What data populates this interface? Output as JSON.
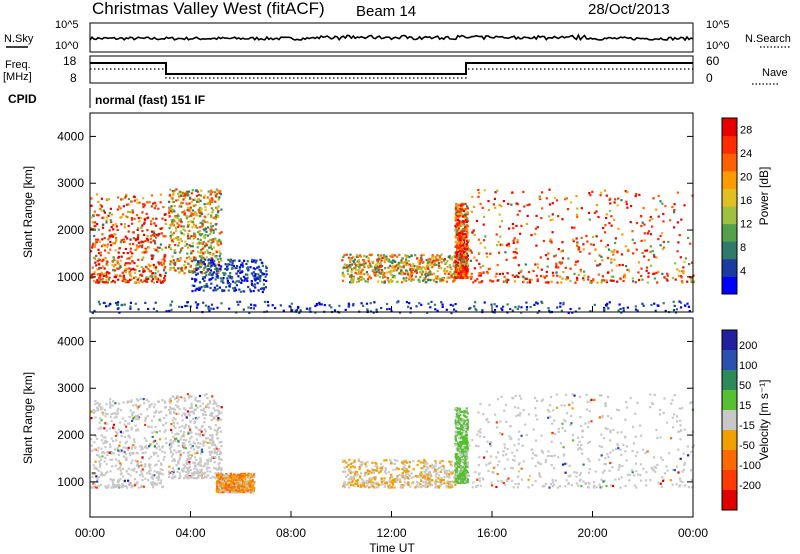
{
  "header": {
    "station": "Christmas Valley West (fitACF)",
    "beam": "Beam 14",
    "date": "28/Oct/2013"
  },
  "panels": {
    "nsky_label": "N.Sky",
    "nsky_ticks": [
      "10^5",
      "10^0"
    ],
    "nsearch_label": "N.Search",
    "nsearch_ticks": [
      "10^5",
      "10^0"
    ],
    "freq_label_1": "Freq.",
    "freq_label_2": "[MHz]",
    "freq_ticks": [
      "18",
      "8"
    ],
    "nave_label": "Nave",
    "nave_ticks": [
      "60",
      "0"
    ],
    "cpid_label": "CPID",
    "cpid_value": "normal (fast) 151 IF"
  },
  "colors": {
    "power_scale": [
      "#0000ff",
      "#1a3ca0",
      "#2f7a6a",
      "#55a04a",
      "#a0c040",
      "#e0c020",
      "#ff9a00",
      "#ff6000",
      "#ff2a00",
      "#e80000"
    ],
    "velocity_scale": [
      "#2020a0",
      "#2a50b0",
      "#2a8a5a",
      "#55c030",
      "#c8c8c8",
      "#f0a000",
      "#ff6a00",
      "#ff3a00",
      "#e00000"
    ]
  },
  "chart_data": [
    {
      "type": "heatmap",
      "title": "",
      "xlabel": "",
      "ylabel": "Slant Range [km]",
      "x_ticks": [
        "00:00",
        "04:00",
        "08:00",
        "12:00",
        "16:00",
        "20:00",
        "00:00"
      ],
      "y_ticks": [
        "1000",
        "2000",
        "3000",
        "4000"
      ],
      "ylim": [
        250,
        4500
      ],
      "colorbar": {
        "label": "Power [dB]",
        "ticks": [
          "4",
          "8",
          "12",
          "16",
          "20",
          "24",
          "28"
        ],
        "range": [
          0,
          30
        ]
      },
      "scatter_regions": [
        {
          "t": [
            0.0,
            3.0
          ],
          "r": [
            900,
            2800
          ],
          "power": "high"
        },
        {
          "t": [
            3.1,
            5.2
          ],
          "r": [
            1100,
            2900
          ],
          "power": "medium"
        },
        {
          "t": [
            4.0,
            7.0
          ],
          "r": [
            700,
            1400
          ],
          "power": "low"
        },
        {
          "t": [
            10.0,
            14.5
          ],
          "r": [
            900,
            1500
          ],
          "power": "medium"
        },
        {
          "t": [
            14.5,
            15.0
          ],
          "r": [
            1000,
            2600
          ],
          "power": "high"
        },
        {
          "t": [
            15.0,
            24.0
          ],
          "r": [
            900,
            2900
          ],
          "power": "high"
        },
        {
          "t": [
            0.0,
            24.0
          ],
          "r": [
            250,
            500
          ],
          "power": "low"
        }
      ]
    },
    {
      "type": "heatmap",
      "title": "",
      "xlabel": "Time UT",
      "ylabel": "Slant Range [km]",
      "x_ticks": [
        "00:00",
        "04:00",
        "08:00",
        "12:00",
        "16:00",
        "20:00",
        "00:00"
      ],
      "y_ticks": [
        "1000",
        "2000",
        "3000",
        "4000"
      ],
      "ylim": [
        250,
        4500
      ],
      "colorbar": {
        "label": "Velocity [m s⁻¹]",
        "ticks": [
          "200",
          "100",
          "50",
          "15",
          "-15",
          "-50",
          "-100",
          "-200"
        ],
        "range": [
          -250,
          250
        ]
      },
      "scatter_regions": [
        {
          "t": [
            0.0,
            3.0
          ],
          "r": [
            900,
            2800
          ],
          "velocity": "near-zero"
        },
        {
          "t": [
            3.1,
            5.2
          ],
          "r": [
            1100,
            2900
          ],
          "velocity": "near-zero"
        },
        {
          "t": [
            5.0,
            6.5
          ],
          "r": [
            800,
            1200
          ],
          "velocity": "negative"
        },
        {
          "t": [
            10.0,
            14.5
          ],
          "r": [
            900,
            1500
          ],
          "velocity": "mixed"
        },
        {
          "t": [
            14.5,
            15.0
          ],
          "r": [
            1000,
            2600
          ],
          "velocity": "positive"
        },
        {
          "t": [
            15.0,
            24.0
          ],
          "r": [
            900,
            2900
          ],
          "velocity": "near-zero"
        }
      ]
    }
  ]
}
